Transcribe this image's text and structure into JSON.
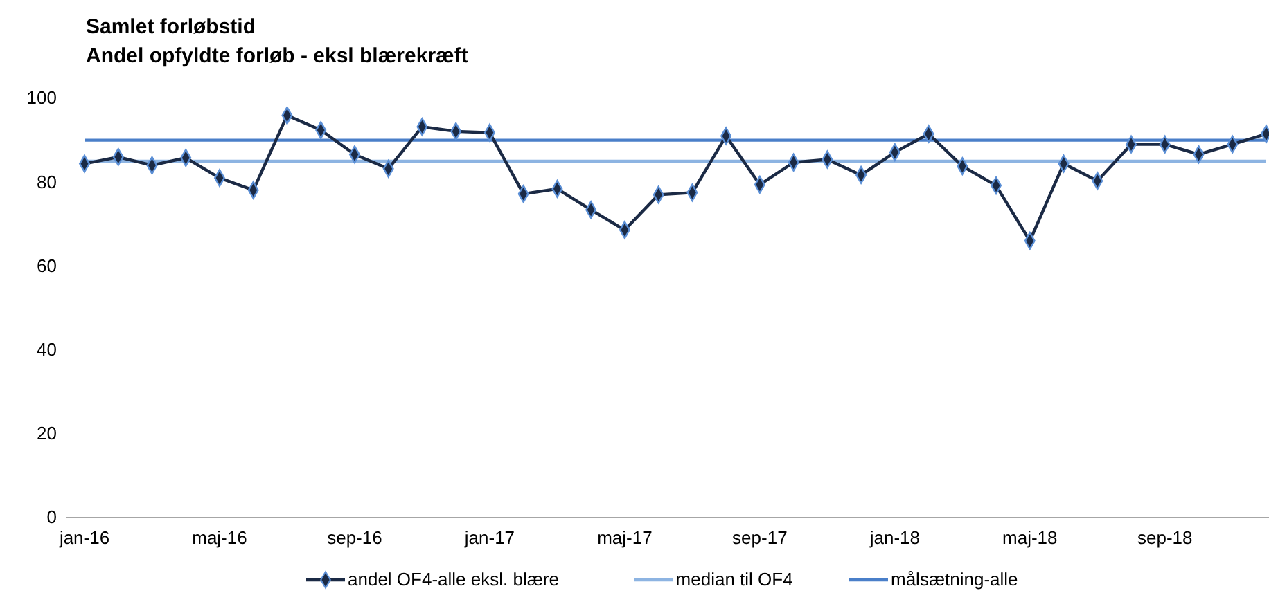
{
  "chart_data": {
    "type": "line",
    "title": "Samlet forløbstid",
    "subtitle": "Andel opfyldte forløb - eksl blærekræft",
    "categories": [
      "jan-16",
      null,
      null,
      null,
      "maj-16",
      null,
      null,
      null,
      "sep-16",
      null,
      null,
      null,
      "jan-17",
      null,
      null,
      null,
      "maj-17",
      null,
      null,
      null,
      "sep-17",
      null,
      null,
      null,
      "jan-18",
      null,
      null,
      null,
      "maj-18",
      null,
      null,
      null,
      "sep-18",
      null,
      null,
      null
    ],
    "series": [
      {
        "name": "andel OF4-alle eksl. blære",
        "color": "#1b2a45",
        "marker": "diamond",
        "values": [
          84.4,
          86.0,
          84.0,
          85.8,
          81.0,
          78.1,
          95.9,
          92.4,
          86.6,
          83.2,
          93.2,
          92.1,
          91.8,
          77.2,
          78.4,
          73.4,
          68.6,
          77.0,
          77.5,
          91.0,
          79.4,
          84.7,
          85.4,
          81.7,
          87.1,
          91.5,
          83.8,
          79.2,
          66.0,
          84.4,
          80.3,
          89.0,
          89.0,
          86.6,
          89.0,
          91.5
        ]
      },
      {
        "name": "median til OF4",
        "color": "#8db4e2",
        "values": [
          85,
          85,
          85,
          85,
          85,
          85,
          85,
          85,
          85,
          85,
          85,
          85,
          85,
          85,
          85,
          85,
          85,
          85,
          85,
          85,
          85,
          85,
          85,
          85,
          85,
          85,
          85,
          85,
          85,
          85,
          85,
          85,
          85,
          85,
          85,
          85
        ]
      },
      {
        "name": "målsætning-alle",
        "color": "#4a7fc9",
        "values": [
          90,
          90,
          90,
          90,
          90,
          90,
          90,
          90,
          90,
          90,
          90,
          90,
          90,
          90,
          90,
          90,
          90,
          90,
          90,
          90,
          90,
          90,
          90,
          90,
          90,
          90,
          90,
          90,
          90,
          90,
          90,
          90,
          90,
          90,
          90,
          90
        ]
      }
    ],
    "ylim": [
      0,
      100
    ],
    "yticks": [
      0,
      20,
      40,
      60,
      80,
      100
    ],
    "grid": false,
    "legend": "bottom"
  }
}
